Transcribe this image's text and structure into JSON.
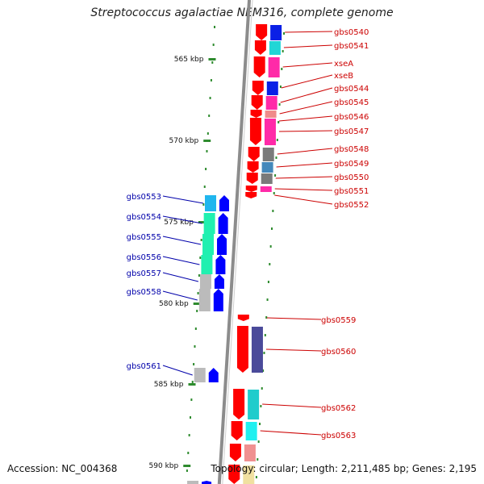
{
  "title": "Streptococcus agalactiae NEM316, complete genome",
  "footer": {
    "accession": "Accession: NC_004368",
    "summary": "Topology: circular; Length: 2,211,485 bp; Genes: 2,195"
  },
  "colors": {
    "backbone": "#8c8c8c",
    "tick": "#2e8b2e",
    "forward_arrow": "#ff0000",
    "reverse_arrow": "#0000ff",
    "forward_label": "#cc0000",
    "reverse_label": "#0000aa"
  },
  "ticks": [
    "565 kbp",
    "570 kbp",
    "575 kbp",
    "580 kbp",
    "585 kbp",
    "590 kbp"
  ],
  "forward_genes": [
    {
      "label": "gbs0540",
      "cog_color": "#0a20e6"
    },
    {
      "label": "gbs0541",
      "cog_color": "#20d6d6"
    },
    {
      "label": "xseA",
      "cog_color": "#ff2aa8"
    },
    {
      "label": "xseB",
      "cog_color": "#0a20e6"
    },
    {
      "label": "gbs0544",
      "cog_color": "#ff2aa8"
    },
    {
      "label": "gbs0545",
      "cog_color": "#f08a8a"
    },
    {
      "label": "gbs0546",
      "cog_color": "#ffa020"
    },
    {
      "label": "gbs0547",
      "cog_color": "#ff2aa8"
    },
    {
      "label": "gbs0548",
      "cog_color": "#7a7a7a"
    },
    {
      "label": "gbs0549",
      "cog_color": "#4488bb"
    },
    {
      "label": "gbs0550",
      "cog_color": "#7a7a7a"
    },
    {
      "label": "gbs0551",
      "cog_color": "#ff2aa8"
    },
    {
      "label": "gbs0552",
      "cog_color": "#ffffff"
    },
    {
      "label": "gbs0559",
      "cog_color": "#ffffff"
    },
    {
      "label": "gbs0560",
      "cog_color": "#4a4a9a"
    },
    {
      "label": "gbs0562",
      "cog_color": "#20cccc"
    },
    {
      "label": "gbs0563",
      "cog_color": "#20f0f0"
    },
    {
      "label": "",
      "cog_color": "#f09090"
    },
    {
      "label": "",
      "cog_color": "#f0e0a0"
    }
  ],
  "reverse_genes": [
    {
      "label": "gbs0553",
      "cog_color": "#20b6ee"
    },
    {
      "label": "gbs0554",
      "cog_color": "#20f0b0"
    },
    {
      "label": "gbs0555",
      "cog_color": "#20f0b0"
    },
    {
      "label": "gbs0556",
      "cog_color": "#20f0b0"
    },
    {
      "label": "gbs0557",
      "cog_color": "#bbbbbb"
    },
    {
      "label": "gbs0558",
      "cog_color": "#bbbbbb"
    },
    {
      "label": "gbs0561",
      "cog_color": "#bbbbbb"
    },
    {
      "label": "",
      "cog_color": "#bbbbbb"
    }
  ]
}
